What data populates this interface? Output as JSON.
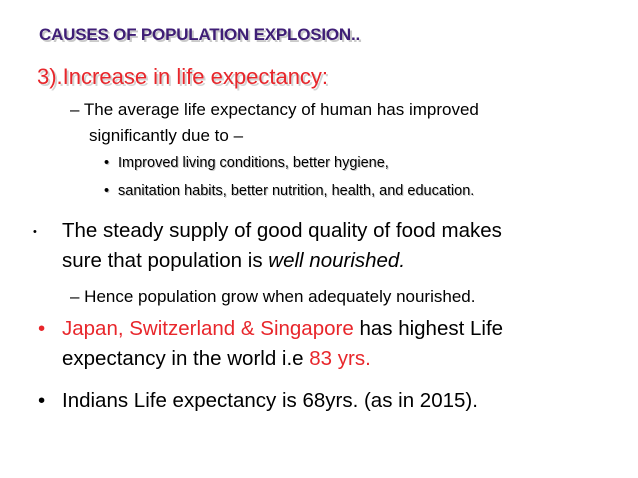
{
  "slide": {
    "title": "CAUSES OF POPULATION EXPLOSION..",
    "subtitle": "3).Increase in life expectancy:",
    "dash1_line1": "– The average life expectancy of human has improved",
    "dash1_line2": "significantly due to –",
    "sub_bullet_1": "Improved living conditions, better hygiene,",
    "sub_bullet_2": "sanitation habits, better nutrition, health, and education.",
    "bullet1_line1": "The steady supply of good quality of food makes",
    "bullet1_line2_prefix": "sure that population is ",
    "bullet1_line2_emph": "well nourished.",
    "dash2": "– Hence population grow when adequately nourished.",
    "bullet2_line1_red": "Japan, Switzerland & Singapore",
    "bullet2_line1_black": " has highest Life",
    "bullet2_line2_prefix": "expectancy in the world i.e ",
    "bullet2_line2_red": "83 yrs.",
    "bullet3": "Indians Life expectancy is 68yrs. (as in 2015)."
  },
  "colors": {
    "title": "#3f1e76",
    "accent_red": "#e8262b",
    "text": "#000000",
    "background": "#ffffff"
  }
}
